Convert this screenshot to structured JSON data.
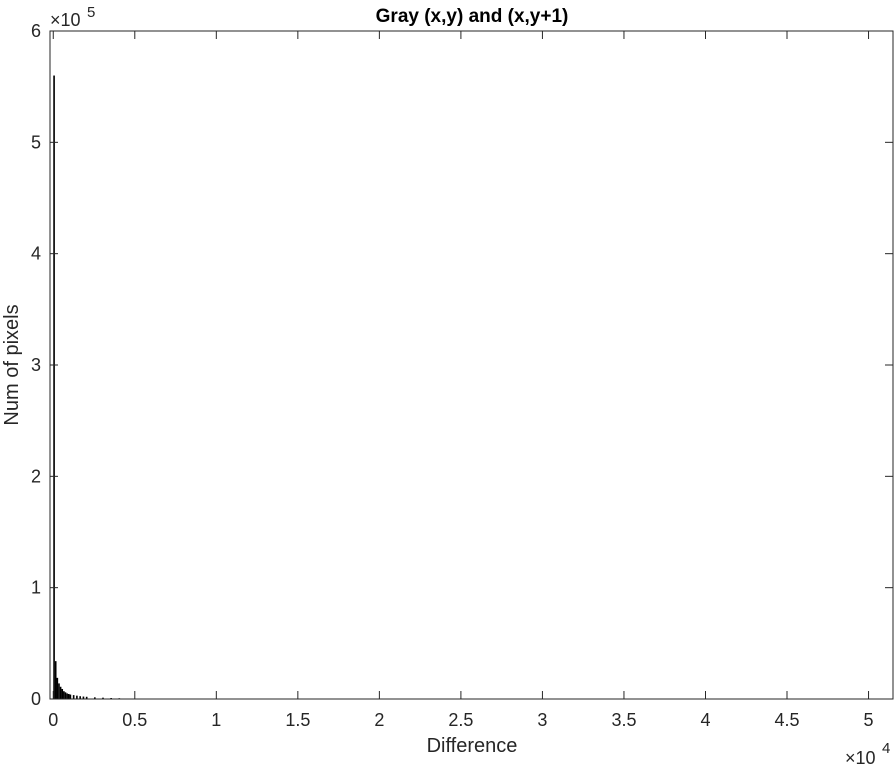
{
  "chart_data": {
    "type": "bar",
    "title": "Gray (x,y) and (x,y+1)",
    "xlabel": "Difference",
    "ylabel": "Num of pixels",
    "xlim": [
      -200,
      51500
    ],
    "ylim": [
      0,
      600000
    ],
    "x_ticks": [
      0,
      5000,
      10000,
      15000,
      20000,
      25000,
      30000,
      35000,
      40000,
      45000,
      50000
    ],
    "x_tick_labels": [
      "0",
      "0.5",
      "1",
      "1.5",
      "2",
      "2.5",
      "3",
      "3.5",
      "4",
      "4.5",
      "5"
    ],
    "y_ticks": [
      0,
      100000,
      200000,
      300000,
      400000,
      500000,
      600000
    ],
    "y_tick_labels": [
      "0",
      "1",
      "2",
      "3",
      "4",
      "5",
      "6"
    ],
    "x_exponent_label": "×10",
    "x_exponent": "4",
    "y_exponent_label": "×10",
    "y_exponent": "5",
    "bar_color": "#000000",
    "grid": false,
    "x": [
      0,
      100,
      200,
      300,
      400,
      500,
      600,
      700,
      800,
      900,
      1000,
      1200,
      1400,
      1600,
      1800,
      2000,
      2500,
      3000,
      3500,
      4000,
      4500
    ],
    "values": [
      560000,
      34000,
      19000,
      14000,
      11000,
      9000,
      7000,
      6000,
      5000,
      4500,
      4000,
      3500,
      3000,
      2500,
      2200,
      2000,
      1500,
      1200,
      900,
      700,
      400
    ]
  }
}
